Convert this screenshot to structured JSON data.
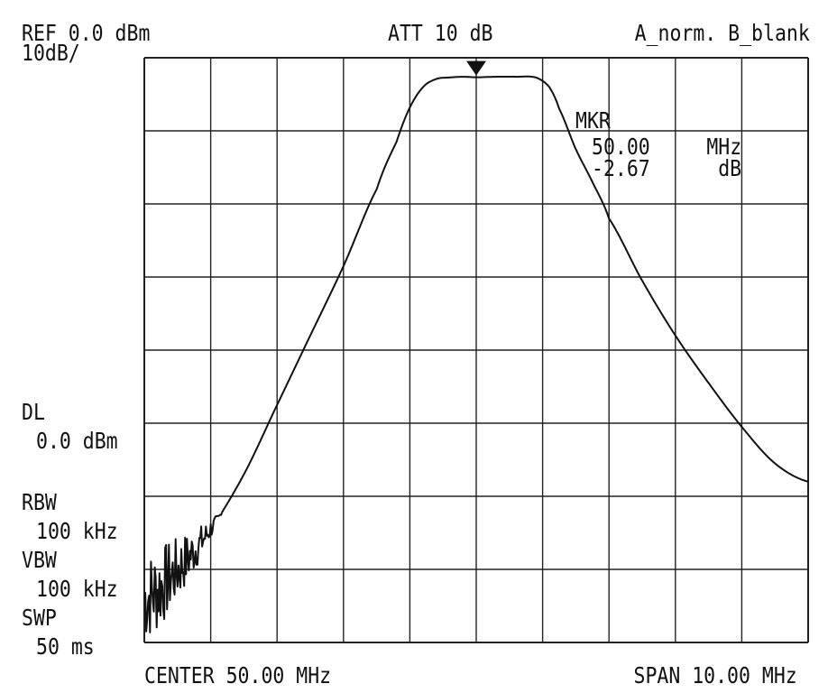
{
  "header": {
    "ref": "REF 0.0 dBm",
    "scale": "10dB/",
    "att": "ATT 10 dB",
    "trace_mode": "A_norm. B_blank"
  },
  "marker": {
    "label": "MKR",
    "freq_value": "50.00",
    "freq_unit": "MHz",
    "level_value": "-2.67",
    "level_unit": "dB"
  },
  "side": {
    "dl_label": "DL",
    "dl_value": "0.0 dBm",
    "rbw_label": "RBW",
    "rbw_value": "100 kHz",
    "vbw_label": "VBW",
    "vbw_value": "100 kHz",
    "swp_label": "SWP",
    "swp_value": "50 ms"
  },
  "footer": {
    "center": "CENTER 50.00 MHz",
    "span": "SPAN 10.00 MHz"
  },
  "colors": {
    "trace": "#111111",
    "grid": "#222222",
    "background": "#ffffff"
  },
  "chart_data": {
    "type": "line",
    "title": "",
    "xlabel": "",
    "ylabel": "",
    "x_unit": "MHz",
    "y_unit": "dB",
    "xlim": [
      45.0,
      55.0
    ],
    "ylim": [
      -80.0,
      0.0
    ],
    "grid": true,
    "x_divisions": 10,
    "y_divisions": 8,
    "marker_point": {
      "x": 50.0,
      "y": -2.67
    },
    "series": [
      {
        "x": [
          45.0,
          45.5,
          46.0,
          46.5,
          47.0,
          47.5,
          48.0,
          48.5,
          48.8,
          49.0,
          49.2,
          49.4,
          49.6,
          49.8,
          50.0,
          50.3,
          50.6,
          50.9,
          51.1,
          51.25,
          51.5,
          51.75,
          52.0,
          52.5,
          53.0,
          53.5,
          54.0,
          54.5,
          55.0
        ],
        "y": [
          -74.0,
          -70.0,
          -64.5,
          -57.0,
          -47.5,
          -38.0,
          -28.5,
          -18.0,
          -11.5,
          -6.8,
          -4.0,
          -2.9,
          -2.7,
          -2.6,
          -2.67,
          -2.6,
          -2.6,
          -2.7,
          -4.0,
          -7.0,
          -12.5,
          -17.0,
          -22.0,
          -30.5,
          -38.0,
          -44.5,
          -50.5,
          -55.5,
          -58.0
        ]
      }
    ]
  }
}
